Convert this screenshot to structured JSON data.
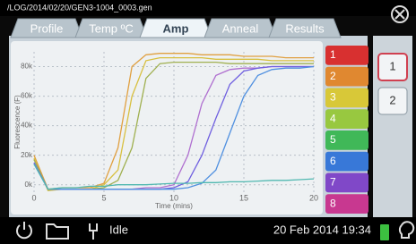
{
  "header": {
    "path": "/LOG/2014/02/20/GEN3-1004_0003.gen"
  },
  "tabs": [
    "Profile",
    "Temp ºC",
    "Amp",
    "Anneal",
    "Results"
  ],
  "active_tab": 2,
  "chart_data": {
    "type": "line",
    "x_label": "Time (mins)",
    "y_label": "Fluorescence (F)",
    "x": [
      0,
      1,
      2,
      3,
      4,
      5,
      6,
      7,
      8,
      9,
      10,
      11,
      12,
      13,
      14,
      15,
      16,
      17,
      18,
      19,
      20
    ],
    "xlim": [
      0,
      20
    ],
    "xticks": [
      0,
      5,
      10,
      15,
      20
    ],
    "ylim": [
      -5000,
      90000
    ],
    "yticks": [
      {
        "value": 0,
        "label": "0k"
      },
      {
        "value": 20000,
        "label": "20k"
      },
      {
        "value": 40000,
        "label": "40k"
      },
      {
        "value": 60000,
        "label": "60k"
      },
      {
        "value": 80000,
        "label": "80k"
      }
    ],
    "grid": true,
    "series": [
      {
        "color": "#e0a040",
        "values": [
          20000,
          -3000,
          -2000,
          -2000,
          -2000,
          1000,
          25000,
          80000,
          88000,
          89000,
          89000,
          89000,
          88000,
          88000,
          88000,
          87000,
          87000,
          87000,
          86000,
          86000,
          86000
        ]
      },
      {
        "color": "#d8c040",
        "values": [
          18000,
          -4000,
          -3000,
          -3000,
          -3000,
          0,
          10000,
          60000,
          84000,
          86000,
          86000,
          86000,
          86000,
          85000,
          85000,
          85000,
          85000,
          84000,
          84000,
          84000,
          84000
        ]
      },
      {
        "color": "#a0b050",
        "values": [
          17000,
          -3000,
          -3000,
          -3000,
          -3000,
          -2000,
          3000,
          25000,
          72000,
          82000,
          83000,
          83000,
          83000,
          83000,
          82000,
          82000,
          82000,
          82000,
          82000,
          82000,
          82000
        ]
      },
      {
        "color": "#b070d0",
        "values": [
          15000,
          -3000,
          -3000,
          -3000,
          -3000,
          -3000,
          -3000,
          -3000,
          -2000,
          -2000,
          0,
          20000,
          55000,
          74000,
          78000,
          79000,
          79000,
          80000,
          80000,
          80000,
          80000
        ]
      },
      {
        "color": "#7060e0",
        "values": [
          15000,
          -3000,
          -3000,
          -3000,
          -3000,
          -3000,
          -3000,
          -3000,
          -3000,
          -3000,
          -2000,
          2000,
          20000,
          45000,
          68000,
          77000,
          79000,
          80000,
          80000,
          80000,
          80000
        ]
      },
      {
        "color": "#5090e0",
        "values": [
          14000,
          -3000,
          -3000,
          -3000,
          -3000,
          -3000,
          -3000,
          -3000,
          -3000,
          -3000,
          -3000,
          -2000,
          1000,
          10000,
          35000,
          60000,
          74000,
          78000,
          79000,
          79000,
          80000
        ]
      },
      {
        "color": "#50b8b0",
        "values": [
          14000,
          -3000,
          -2000,
          -2000,
          -1000,
          -1000,
          0,
          0,
          0,
          500,
          1000,
          1000,
          1500,
          1500,
          2000,
          2000,
          2500,
          3000,
          3000,
          3500,
          4000
        ]
      }
    ]
  },
  "channels": [
    {
      "label": "1",
      "color": "#d83030"
    },
    {
      "label": "2",
      "color": "#e08830"
    },
    {
      "label": "3",
      "color": "#d8c838"
    },
    {
      "label": "4",
      "color": "#98c840"
    },
    {
      "label": "5",
      "color": "#40b858"
    },
    {
      "label": "6",
      "color": "#3878d8"
    },
    {
      "label": "7",
      "color": "#8048c8"
    },
    {
      "label": "8",
      "color": "#c83890"
    }
  ],
  "pages": [
    "1",
    "2"
  ],
  "status": {
    "state": "Idle",
    "datetime": "20 Feb 2014 19:34"
  }
}
